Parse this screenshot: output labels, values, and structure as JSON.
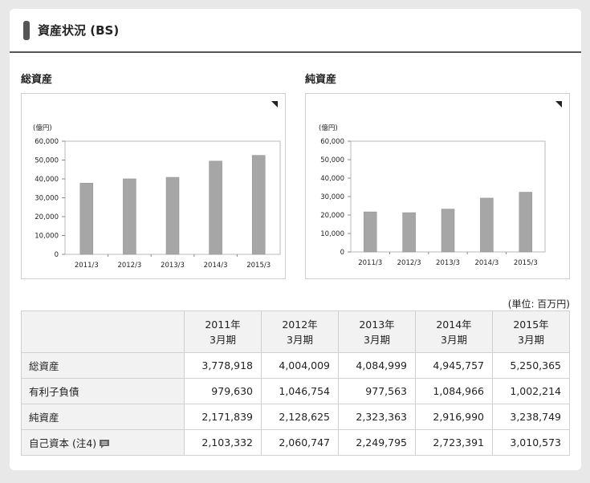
{
  "header": {
    "title": "資産状況 (BS)"
  },
  "charts": {
    "total_assets": {
      "title": "総資産"
    },
    "net_assets": {
      "title": "純資産"
    }
  },
  "chart_data": [
    {
      "type": "bar",
      "title": "総資産",
      "ylabel": "(億円)",
      "categories": [
        "2011/3",
        "2012/3",
        "2013/3",
        "2014/3",
        "2015/3"
      ],
      "values": [
        37789,
        40040,
        40850,
        49458,
        52504
      ],
      "ylim": [
        0,
        60000
      ],
      "yticks": [
        "0",
        "10,000",
        "20,000",
        "30,000",
        "40,000",
        "50,000",
        "60,000"
      ],
      "grid": false,
      "bar_color": "#a6a6a6"
    },
    {
      "type": "bar",
      "title": "純資産",
      "ylabel": "(億円)",
      "categories": [
        "2011/3",
        "2012/3",
        "2013/3",
        "2014/3",
        "2015/3"
      ],
      "values": [
        21718,
        21286,
        23234,
        29170,
        32387
      ],
      "ylim": [
        0,
        60000
      ],
      "yticks": [
        "0",
        "10,000",
        "20,000",
        "30,000",
        "40,000",
        "50,000",
        "60,000"
      ],
      "grid": false,
      "bar_color": "#a6a6a6"
    }
  ],
  "table": {
    "unit": "(単位: 百万円)",
    "columns": [
      {
        "year": "2011年",
        "period": "3月期"
      },
      {
        "year": "2012年",
        "period": "3月期"
      },
      {
        "year": "2013年",
        "period": "3月期"
      },
      {
        "year": "2014年",
        "period": "3月期"
      },
      {
        "year": "2015年",
        "period": "3月期"
      }
    ],
    "rows": [
      {
        "label": "総資産",
        "values": [
          "3,778,918",
          "4,004,009",
          "4,084,999",
          "4,945,757",
          "5,250,365"
        ]
      },
      {
        "label": "有利子負債",
        "values": [
          "979,630",
          "1,046,754",
          "977,563",
          "1,084,966",
          "1,002,214"
        ]
      },
      {
        "label": "純資産",
        "values": [
          "2,171,839",
          "2,128,625",
          "2,323,363",
          "2,916,990",
          "3,238,749"
        ]
      },
      {
        "label": "自己資本 (注4)",
        "values": [
          "2,103,332",
          "2,060,747",
          "2,249,795",
          "2,723,391",
          "3,010,573"
        ]
      }
    ]
  },
  "icons": {
    "note": "note-speech-bubble-icon",
    "expand": "expand-corner-icon"
  }
}
